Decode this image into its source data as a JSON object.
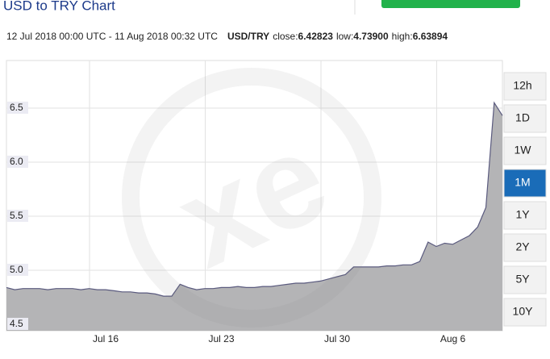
{
  "header": {
    "title": "USD to TRY Chart",
    "range": "12 Jul 2018 00:00 UTC - 11 Aug 2018 00:32 UTC",
    "pair": "USD/TRY",
    "close_label": "close:",
    "close": "6.42823",
    "low_label": "low:",
    "low": "4.73900",
    "high_label": "high:",
    "high": "6.63894"
  },
  "buttons": [
    {
      "label": "12h",
      "active": false
    },
    {
      "label": "1D",
      "active": false
    },
    {
      "label": "1W",
      "active": false
    },
    {
      "label": "1M",
      "active": true
    },
    {
      "label": "1Y",
      "active": false
    },
    {
      "label": "2Y",
      "active": false
    },
    {
      "label": "5Y",
      "active": false
    },
    {
      "label": "10Y",
      "active": false
    }
  ],
  "chart_data": {
    "type": "area",
    "color": "#5a5a7e",
    "fill": "#b4b4b6",
    "grid": true,
    "categories": [
      null,
      null,
      null,
      null,
      null,
      null,
      null,
      null,
      null,
      null,
      null,
      null,
      "Jul 16",
      null,
      null,
      null,
      null,
      null,
      null,
      null,
      null,
      null,
      null,
      null,
      null,
      null,
      "Jul 23",
      null,
      null,
      null,
      null,
      null,
      null,
      null,
      null,
      null,
      null,
      null,
      null,
      null,
      "Jul 30",
      null,
      null,
      null,
      null,
      null,
      null,
      null,
      null,
      null,
      null,
      null,
      null,
      null,
      "Aug 6",
      null,
      null,
      null,
      null,
      null,
      null
    ],
    "values": [
      4.84,
      4.82,
      4.83,
      4.83,
      4.83,
      4.82,
      4.83,
      4.83,
      4.83,
      4.82,
      4.83,
      4.82,
      4.82,
      4.81,
      4.8,
      4.8,
      4.79,
      4.79,
      4.78,
      4.76,
      4.76,
      4.87,
      4.84,
      4.82,
      4.83,
      4.83,
      4.84,
      4.84,
      4.85,
      4.84,
      4.84,
      4.85,
      4.85,
      4.86,
      4.87,
      4.88,
      4.88,
      4.89,
      4.9,
      4.92,
      4.94,
      4.96,
      5.03,
      5.03,
      5.03,
      5.03,
      5.04,
      5.04,
      5.05,
      5.05,
      5.08,
      5.26,
      5.22,
      5.25,
      5.24,
      5.28,
      5.32,
      5.4,
      5.58,
      6.55,
      6.43
    ],
    "ylim": [
      4.44,
      6.94
    ],
    "yticks": [
      {
        "value": 4.5,
        "label": "4.5"
      },
      {
        "value": 5,
        "label": "5.0"
      },
      {
        "value": 5.5,
        "label": "5.5"
      },
      {
        "value": 6,
        "label": "6.0"
      },
      {
        "value": 6.5,
        "label": "6.5"
      }
    ]
  }
}
